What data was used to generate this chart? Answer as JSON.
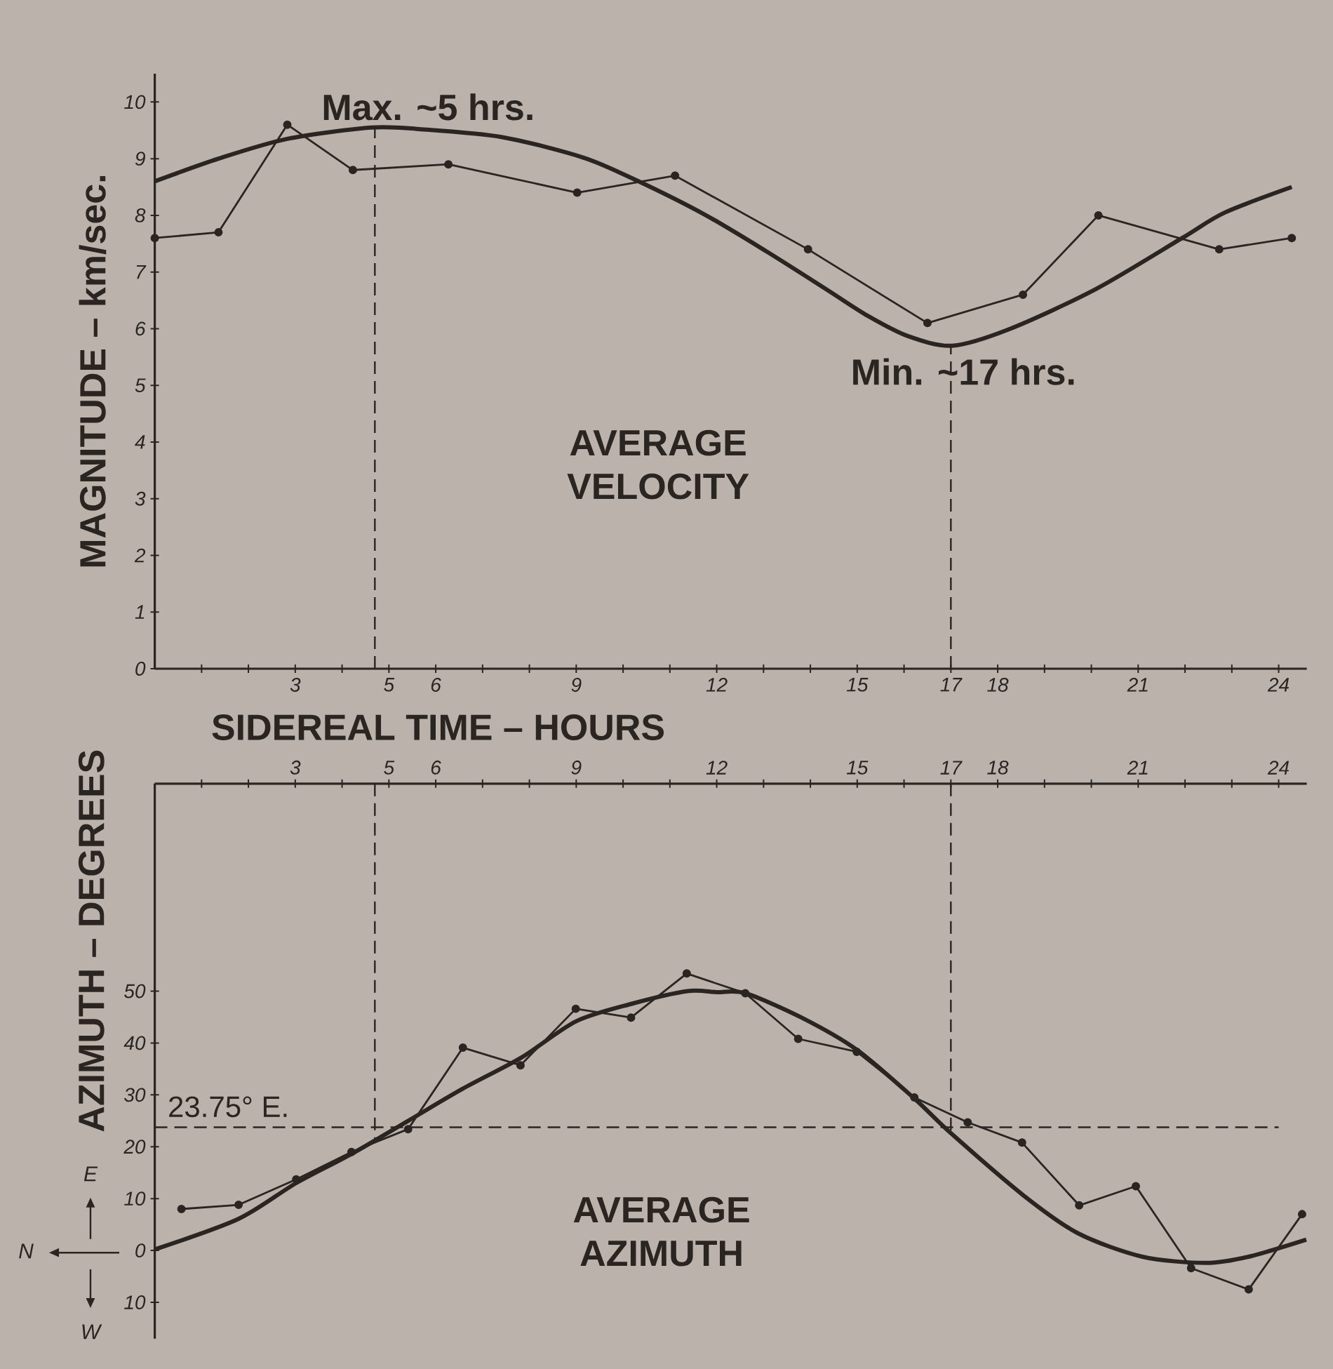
{
  "chart_data": [
    {
      "type": "line",
      "xlabel": "SIDEREAL TIME – HOURS",
      "ylabel": "MAGNITUDE – km/sec.",
      "xlim": [
        0,
        24.6
      ],
      "ylim": [
        0,
        10.5
      ],
      "xticks": [
        {
          "value": 1,
          "label": null
        },
        {
          "value": 2,
          "label": null
        },
        3,
        {
          "value": 4,
          "label": null
        },
        5,
        6,
        {
          "value": 7,
          "label": null
        },
        {
          "value": 8,
          "label": null
        },
        9,
        {
          "value": 10,
          "label": null
        },
        {
          "value": 11,
          "label": null
        },
        12,
        {
          "value": 13,
          "label": null
        },
        {
          "value": 14,
          "label": null
        },
        15,
        {
          "value": 16,
          "label": null
        },
        17,
        18,
        {
          "value": 19,
          "label": null
        },
        {
          "value": 20,
          "label": null
        },
        21,
        {
          "value": 22,
          "label": null
        },
        {
          "value": 23,
          "label": null
        },
        24
      ],
      "yticks": [
        0,
        1,
        2,
        3,
        4,
        5,
        6,
        7,
        8,
        9,
        10
      ],
      "marker": "circle",
      "series": [
        {
          "color": "#2b2522",
          "x": [
            0,
            1.36,
            2.83,
            4.23,
            6.27,
            9.02,
            11.11,
            13.95,
            16.5,
            18.54,
            20.15,
            22.73,
            24.28
          ],
          "values": [
            7.6,
            7.7,
            9.6,
            8.8,
            8.9,
            8.4,
            8.7,
            7.4,
            6.1,
            6.6,
            8.0,
            7.4,
            7.6
          ]
        },
        {
          "type": "line",
          "color": "#2b2522",
          "marker": "none",
          "x": [
            0,
            1.36,
            2.83,
            4.62,
            5.68,
            7.42,
            9.15,
            10.28,
            11.75,
            13.05,
            14.35,
            15.22,
            16.08,
            17.03,
            18.27,
            20.1,
            21.94,
            22.85,
            24.28
          ],
          "values": [
            8.6,
            9.0,
            9.35,
            9.55,
            9.52,
            9.38,
            9.02,
            8.62,
            8.01,
            7.37,
            6.69,
            6.23,
            5.87,
            5.7,
            6.0,
            6.7,
            7.6,
            8.05,
            8.5
          ]
        }
      ],
      "ref_lines": [
        {
          "axis": "x",
          "value": 4.7,
          "label": "Max. ~5 hrs.",
          "color": "#2b2522",
          "line_style": "dashed"
        },
        {
          "axis": "x",
          "value": 17,
          "label": "Min. ~17 hrs.",
          "color": "#2b2522",
          "line_style": "dashed"
        }
      ],
      "annotations": [
        "AVERAGE VELOCITY"
      ]
    },
    {
      "type": "line",
      "ylabel": "AZIMUTH – DEGREES",
      "xlim": [
        0,
        24.6
      ],
      "ylim": [
        -17,
        90
      ],
      "xticks": [
        {
          "value": 1,
          "label": null
        },
        {
          "value": 2,
          "label": null
        },
        3,
        {
          "value": 4,
          "label": null
        },
        5,
        6,
        {
          "value": 7,
          "label": null
        },
        {
          "value": 8,
          "label": null
        },
        9,
        {
          "value": 10,
          "label": null
        },
        {
          "value": 11,
          "label": null
        },
        12,
        {
          "value": 13,
          "label": null
        },
        {
          "value": 14,
          "label": null
        },
        15,
        {
          "value": 16,
          "label": null
        },
        17,
        18,
        {
          "value": 19,
          "label": null
        },
        {
          "value": 20,
          "label": null
        },
        21,
        {
          "value": 22,
          "label": null
        },
        {
          "value": 23,
          "label": null
        },
        24
      ],
      "yticks": [
        {
          "value": -10,
          "label": "10"
        },
        0,
        10,
        20,
        30,
        40,
        50
      ],
      "marker": "circle",
      "series": [
        {
          "color": "#2b2522",
          "x": [
            0.57,
            1.79,
            3.02,
            4.2,
            5.41,
            6.58,
            7.81,
            8.99,
            10.17,
            11.36,
            12.61,
            13.74,
            14.99,
            16.22,
            17.36,
            18.52,
            19.74,
            20.95,
            22.13,
            23.36,
            24.5
          ],
          "values": [
            8,
            8.8,
            13.7,
            19,
            23.4,
            39.1,
            35.7,
            46.6,
            44.9,
            53.4,
            49.6,
            40.8,
            38.3,
            29.5,
            24.7,
            20.8,
            8.7,
            12.4,
            -3.4,
            -7.5,
            7
          ]
        },
        {
          "type": "line",
          "color": "#2b2522",
          "marker": "none",
          "x": [
            0,
            1.79,
            3.02,
            4.2,
            5.43,
            6.58,
            7.83,
            9.0,
            10.2,
            11.37,
            12.0,
            12.61,
            13.81,
            14.99,
            16.22,
            16.99,
            18.54,
            19.72,
            21.09,
            22.45,
            23.36,
            24.59
          ],
          "values": [
            0.2,
            6.1,
            13,
            18.6,
            25.1,
            31.2,
            37.2,
            44.2,
            47.6,
            50,
            49.8,
            49.6,
            44.9,
            38.7,
            29.3,
            22.7,
            10.7,
            3.3,
            -1.2,
            -2.4,
            -1.2,
            2.1
          ]
        }
      ],
      "ref_lines": [
        {
          "axis": "x",
          "value": 4.7,
          "color": "#2b2522",
          "line_style": "dashed"
        },
        {
          "axis": "x",
          "value": 17,
          "color": "#2b2522",
          "line_style": "dashed"
        },
        {
          "axis": "y",
          "value": 23.75,
          "label": "23.75° E.",
          "color": "#2b2522",
          "line_style": "dashed"
        }
      ],
      "annotations": [
        "AVERAGE AZIMUTH",
        "N",
        "E",
        "W"
      ]
    }
  ]
}
